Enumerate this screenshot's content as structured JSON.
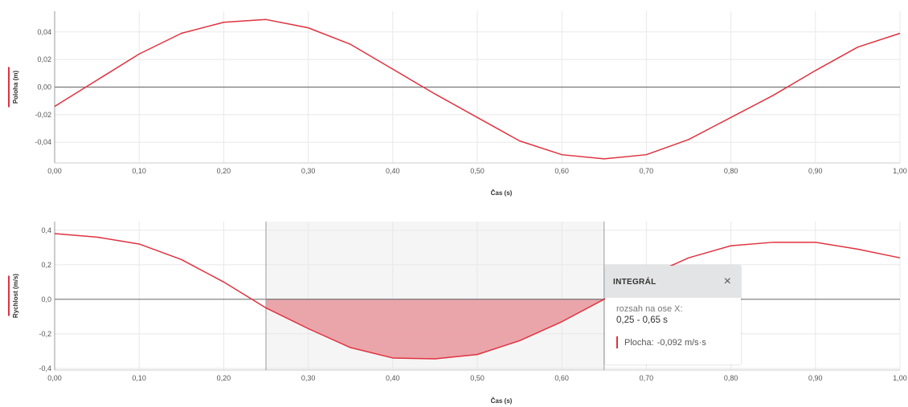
{
  "colors": {
    "series": "#e0323f",
    "area_fill": "#e9a0a5",
    "selection_fill": "#f5f5f5",
    "grid": "#e8e8e8",
    "zero_line": "#777777"
  },
  "chart_data": [
    {
      "type": "line",
      "xlabel": "Čas (s)",
      "ylabel": "Poloha (m)",
      "xlim": [
        0,
        1
      ],
      "ylim": [
        -0.055,
        0.055
      ],
      "x_ticks": [
        "0,00",
        "0,10",
        "0,20",
        "0,30",
        "0,40",
        "0,50",
        "0,60",
        "0,70",
        "0,80",
        "0,90",
        "1,00"
      ],
      "y_ticks": [
        {
          "value": 0.04,
          "label": "0,04"
        },
        {
          "value": 0.02,
          "label": "0,02"
        },
        {
          "value": 0.0,
          "label": "0,00"
        },
        {
          "value": -0.02,
          "label": "-0,02"
        },
        {
          "value": -0.04,
          "label": "-0,04"
        }
      ],
      "x": [
        0.0,
        0.05,
        0.1,
        0.15,
        0.2,
        0.25,
        0.3,
        0.35,
        0.4,
        0.45,
        0.5,
        0.55,
        0.6,
        0.65,
        0.7,
        0.75,
        0.8,
        0.85,
        0.9,
        0.95,
        1.0
      ],
      "y": [
        -0.014,
        0.005,
        0.024,
        0.039,
        0.047,
        0.049,
        0.043,
        0.031,
        0.013,
        -0.005,
        -0.022,
        -0.039,
        -0.049,
        -0.052,
        -0.049,
        -0.038,
        -0.022,
        -0.006,
        0.012,
        0.029,
        0.039
      ],
      "grid": true
    },
    {
      "type": "line",
      "xlabel": "Čas (s)",
      "ylabel": "Rychlost (m/s)",
      "xlim": [
        0,
        1
      ],
      "ylim": [
        -0.41,
        0.45
      ],
      "x_ticks": [
        "0,00",
        "0,10",
        "0,20",
        "0,30",
        "0,40",
        "0,50",
        "0,60",
        "0,70",
        "0,80",
        "0,90",
        "1,00"
      ],
      "y_ticks": [
        {
          "value": 0.4,
          "label": "0,4"
        },
        {
          "value": 0.2,
          "label": "0,2"
        },
        {
          "value": 0.0,
          "label": "0,0"
        },
        {
          "value": -0.2,
          "label": "-0,2"
        },
        {
          "value": -0.4,
          "label": "-0,4"
        }
      ],
      "x": [
        0.0,
        0.05,
        0.1,
        0.15,
        0.2,
        0.25,
        0.3,
        0.35,
        0.4,
        0.45,
        0.5,
        0.55,
        0.6,
        0.65,
        0.7,
        0.75,
        0.8,
        0.85,
        0.9,
        0.95,
        1.0
      ],
      "y": [
        0.38,
        0.36,
        0.32,
        0.23,
        0.1,
        -0.05,
        -0.17,
        -0.28,
        -0.34,
        -0.345,
        -0.32,
        -0.24,
        -0.13,
        0.0,
        0.13,
        0.24,
        0.31,
        0.33,
        0.33,
        0.29,
        0.24
      ],
      "selection": {
        "x_start": 0.25,
        "x_end": 0.65
      },
      "grid": true
    }
  ],
  "tooltip": {
    "title": "INTEGRÁL",
    "close_icon": "×",
    "range_label": "rozsah na ose X:",
    "range_value": "0,25 - 0,65 s",
    "area_label": "Plocha:",
    "area_value": "-0,092 m/s·s"
  }
}
